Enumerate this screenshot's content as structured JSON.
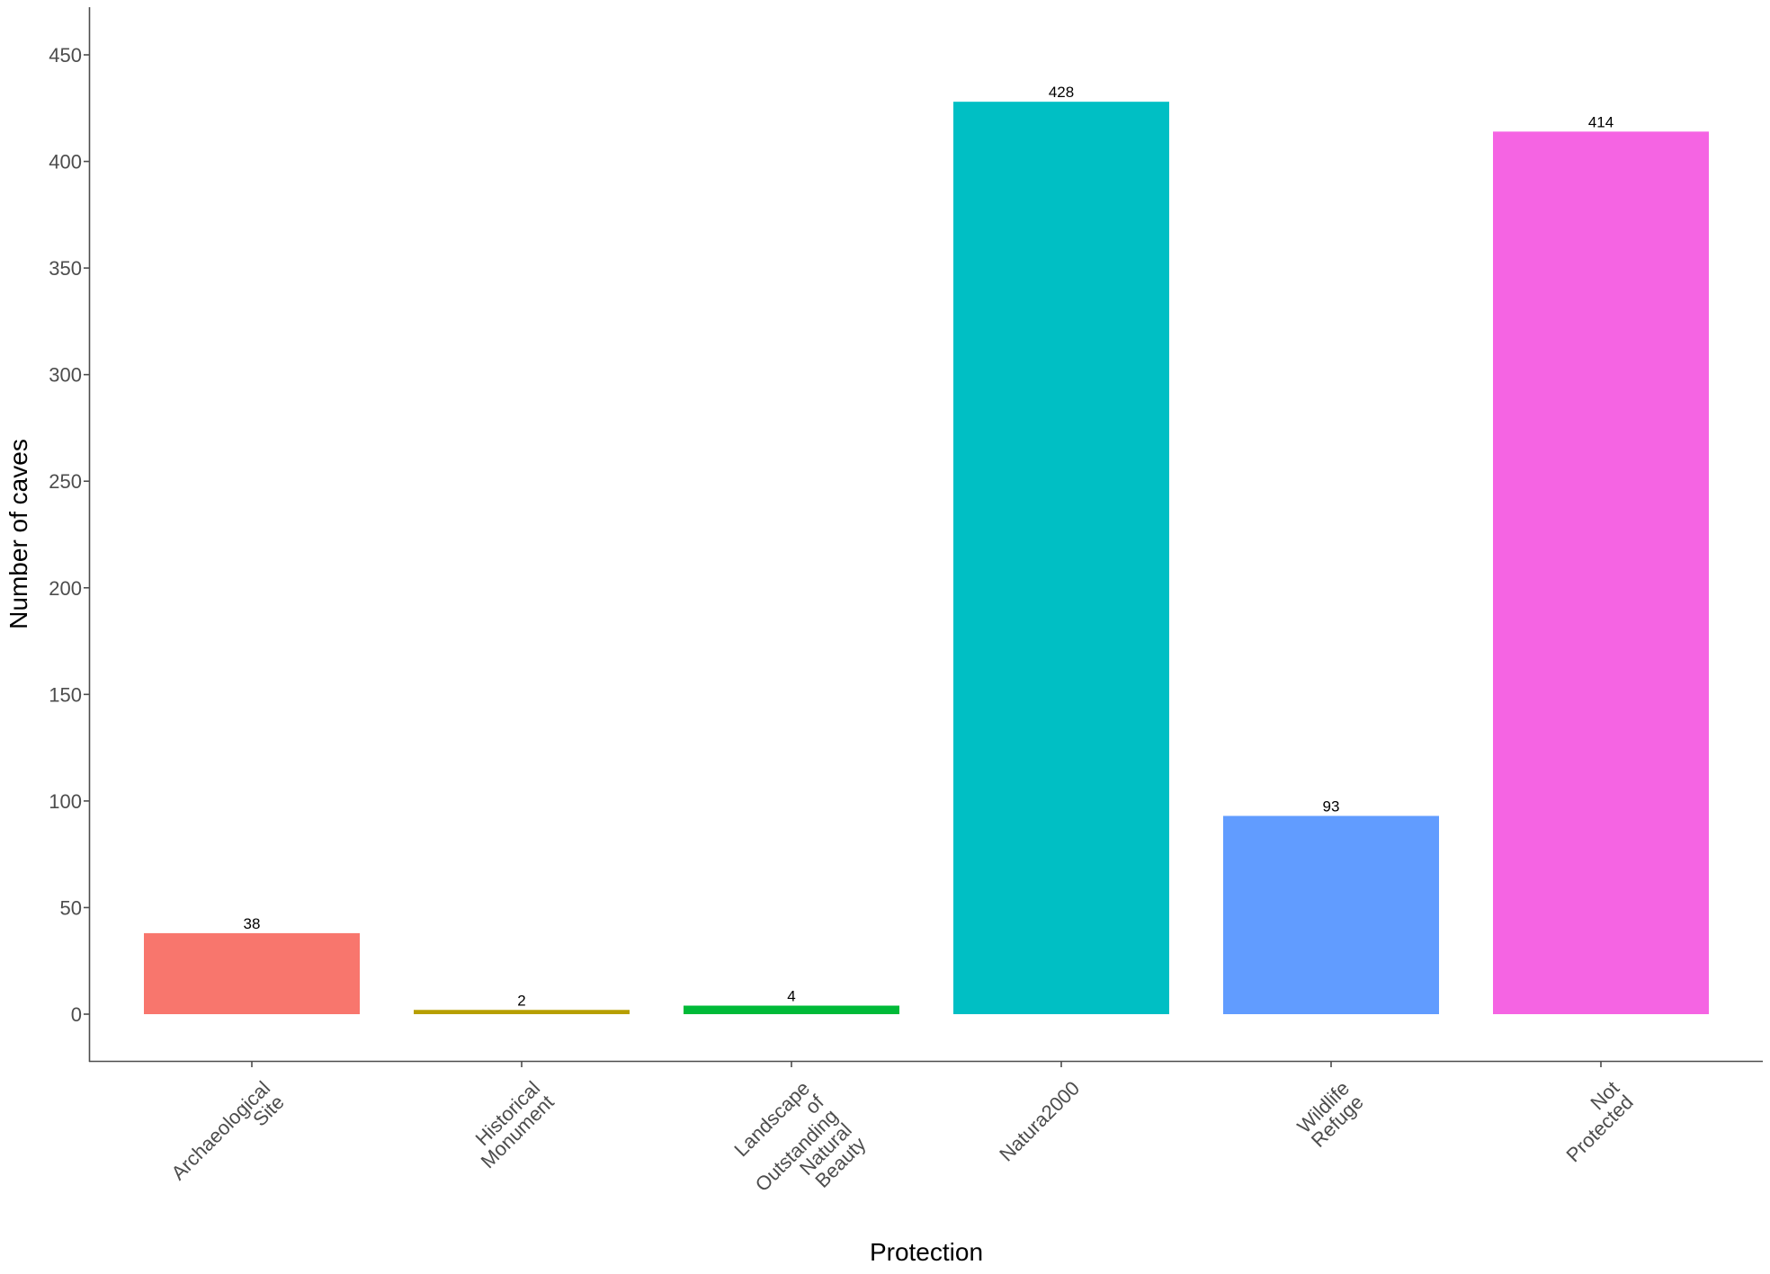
{
  "chart_data": {
    "type": "bar",
    "title": "",
    "xlabel": "Protection",
    "ylabel": "Number of caves",
    "categories": [
      "Archaeological Site",
      "Historical Monument",
      "Landscape of Outstanding Natural Beauty",
      "Natura2000",
      "Wildlife Refuge",
      "Not Protected"
    ],
    "category_label_lines": [
      [
        "Archaeological",
        "Site"
      ],
      [
        "Historical",
        "Monument"
      ],
      [
        "Landscape",
        "of",
        "Outstanding",
        "Natural",
        "Beauty"
      ],
      [
        "Natura2000"
      ],
      [
        "Wildlife",
        "Refuge"
      ],
      [
        "Not",
        "Protected"
      ]
    ],
    "values": [
      38,
      2,
      4,
      428,
      93,
      414
    ],
    "colors": [
      "#F8766D",
      "#B79F00",
      "#00BA38",
      "#00BFC4",
      "#619CFF",
      "#F564E3"
    ],
    "data_labels": [
      "38",
      "2",
      "4",
      "428",
      "93",
      "414"
    ],
    "y_ticks": [
      0,
      50,
      100,
      150,
      200,
      250,
      300,
      350,
      400,
      450
    ],
    "ylim": [
      -22,
      470
    ],
    "grid": false,
    "legend": "none",
    "x_tick_label_rotation": -45
  }
}
